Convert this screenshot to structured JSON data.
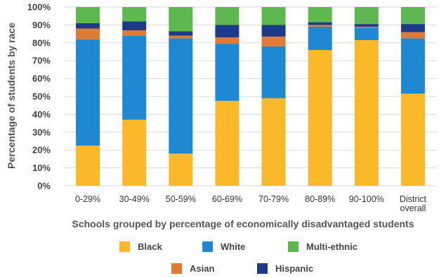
{
  "chart_data": {
    "type": "bar",
    "stacked": true,
    "categories": [
      [
        "0-29%"
      ],
      [
        "30-49%"
      ],
      [
        "50-59%"
      ],
      [
        "60-69%"
      ],
      [
        "70-79%"
      ],
      [
        "80-89%"
      ],
      [
        "90-100%"
      ],
      [
        "District",
        "overall"
      ]
    ],
    "series": [
      {
        "name": "Black",
        "color": "#FBB829",
        "values": [
          22.5,
          37,
          18,
          47.5,
          49,
          76,
          81.5,
          51.5
        ]
      },
      {
        "name": "White",
        "color": "#1E88D2",
        "values": [
          59.5,
          47,
          64.5,
          32,
          29,
          13,
          7,
          31
        ]
      },
      {
        "name": "Asian",
        "color": "#E07A35",
        "values": [
          6,
          3,
          1.5,
          3.5,
          5.5,
          1,
          0.5,
          3.5
        ]
      },
      {
        "name": "Hispanic",
        "color": "#1B3A8A",
        "values": [
          3,
          5,
          2.5,
          7,
          6.5,
          1.5,
          1.5,
          4.5
        ]
      },
      {
        "name": "Multi-ethnic",
        "color": "#5DB94F",
        "values": [
          9,
          8,
          13.5,
          10,
          10,
          8.5,
          9.5,
          9.5
        ]
      }
    ],
    "ylabel": "Percentage of students by race",
    "xlabel": "Schools grouped by percentage of economically disadvantaged students",
    "yticks": [
      "0%",
      "10%",
      "20%",
      "30%",
      "40%",
      "50%",
      "60%",
      "70%",
      "80%",
      "90%",
      "100%"
    ],
    "ylim": [
      0,
      100
    ],
    "grid": true,
    "legend": {
      "position": "bottom",
      "rows": [
        [
          "Black",
          "White",
          "Multi-ethnic"
        ],
        [
          "Asian",
          "Hispanic"
        ]
      ]
    }
  }
}
